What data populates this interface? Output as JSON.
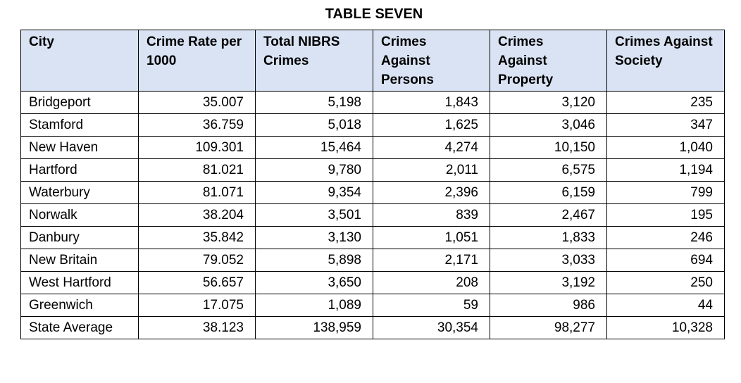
{
  "title": "TABLE SEVEN",
  "table": {
    "header": [
      "City",
      "Crime Rate per 1000",
      "Total NIBRS Crimes",
      "Crimes Against Persons",
      "Crimes Against Property",
      "Crimes Against Society"
    ],
    "rows": [
      [
        "Bridgeport",
        "35.007",
        "5,198",
        "1,843",
        "3,120",
        "235"
      ],
      [
        "Stamford",
        "36.759",
        "5,018",
        "1,625",
        "3,046",
        "347"
      ],
      [
        "New Haven",
        "109.301",
        "15,464",
        "4,274",
        "10,150",
        "1,040"
      ],
      [
        "Hartford",
        "81.021",
        "9,780",
        "2,011",
        "6,575",
        "1,194"
      ],
      [
        "Waterbury",
        "81.071",
        "9,354",
        "2,396",
        "6,159",
        "799"
      ],
      [
        "Norwalk",
        "38.204",
        "3,501",
        "839",
        "2,467",
        "195"
      ],
      [
        "Danbury",
        "35.842",
        "3,130",
        "1,051",
        "1,833",
        "246"
      ],
      [
        "New Britain",
        "79.052",
        "5,898",
        "2,171",
        "3,033",
        "694"
      ],
      [
        "West Hartford",
        "56.657",
        "3,650",
        "208",
        "3,192",
        "250"
      ],
      [
        "Greenwich",
        "17.075",
        "1,089",
        "59",
        "986",
        "44"
      ],
      [
        "State Average",
        "38.123",
        "138,959",
        "30,354",
        "98,277",
        "10,328"
      ]
    ]
  }
}
